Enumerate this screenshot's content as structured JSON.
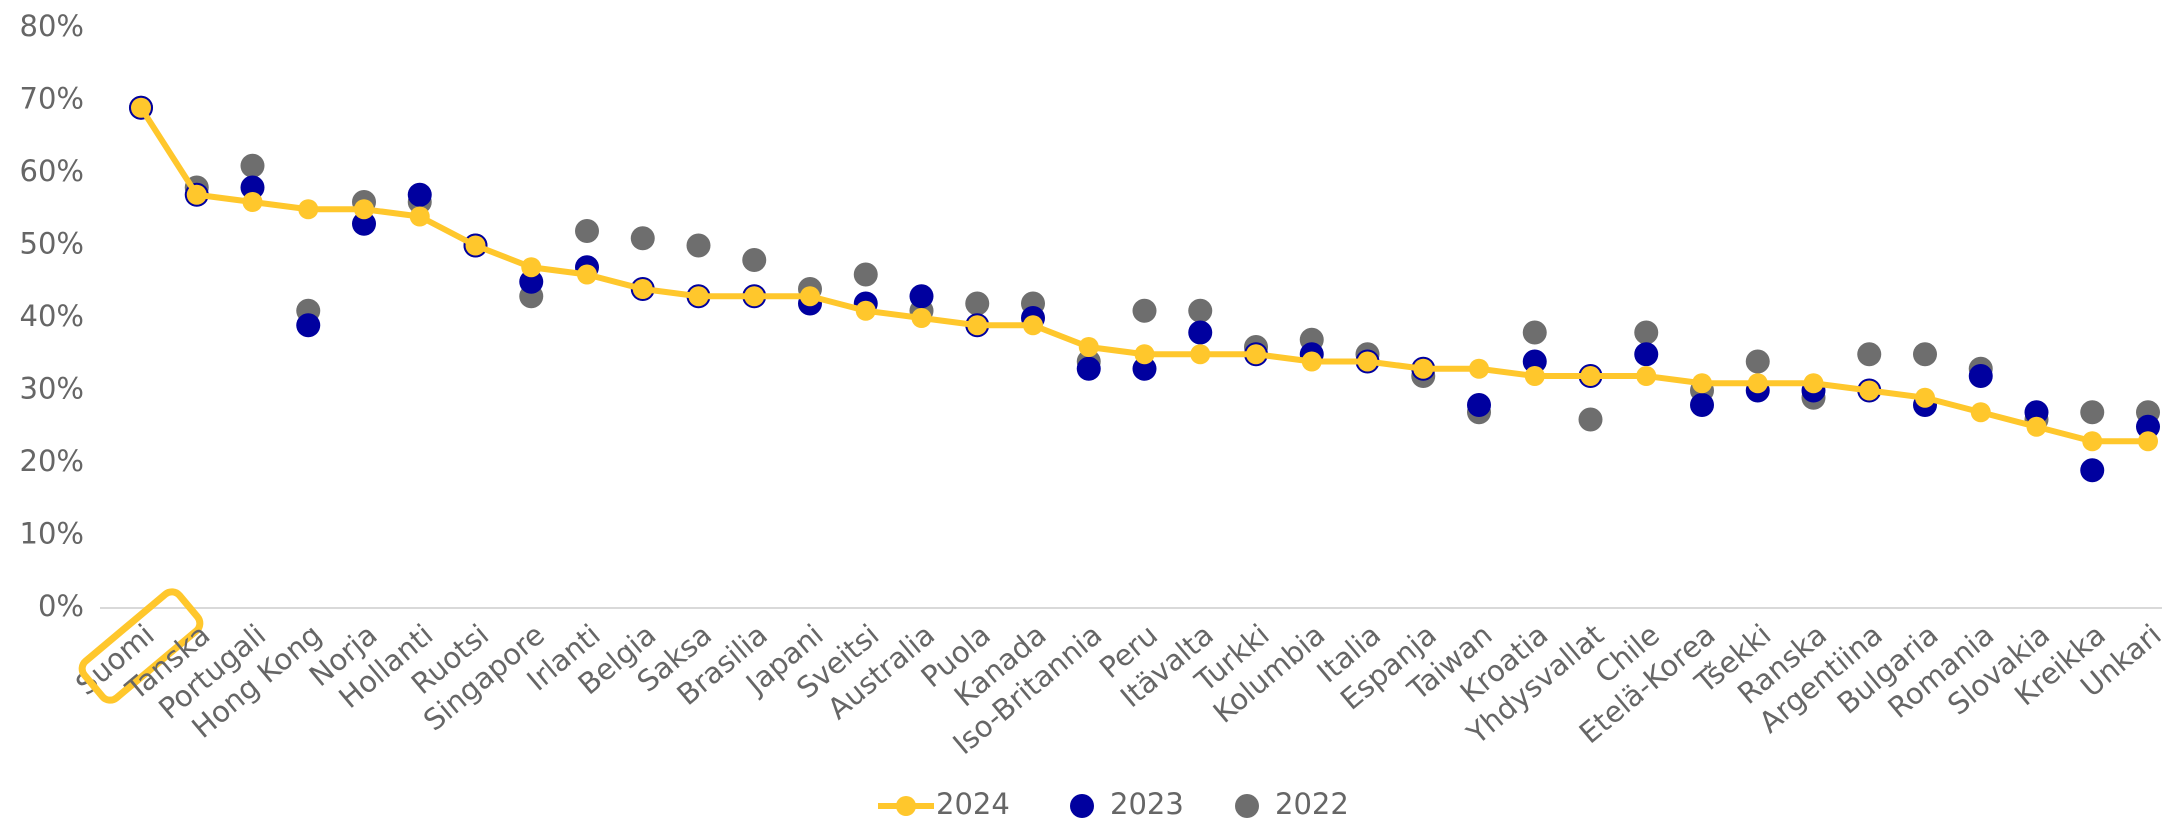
{
  "chart_data": {
    "type": "line",
    "categories": [
      "Suomi",
      "Tanska",
      "Portugali",
      "Hong Kong",
      "Norja",
      "Hollanti",
      "Ruotsi",
      "Singapore",
      "Irlanti",
      "Belgia",
      "Saksa",
      "Brasilia",
      "Japani",
      "Sveitsi",
      "Australia",
      "Puola",
      "Kanada",
      "Iso-Britannia",
      "Peru",
      "Itävalta",
      "Turkki",
      "Kolumbia",
      "Italia",
      "Espanja",
      "Taiwan",
      "Kroatia",
      "Yhdysvallat",
      "Chile",
      "Etelä-Korea",
      "Tšekki",
      "Ranska",
      "Argentiina",
      "Bulgaria",
      "Romania",
      "Slovakia",
      "Kreikka",
      "Unkari"
    ],
    "series": [
      {
        "name": "2024",
        "color": "#FFC72C",
        "style": "line",
        "values": [
          69,
          57,
          56,
          55,
          55,
          54,
          50,
          47,
          46,
          44,
          43,
          43,
          43,
          41,
          40,
          39,
          39,
          36,
          35,
          35,
          35,
          34,
          34,
          33,
          33,
          32,
          32,
          32,
          31,
          31,
          31,
          30,
          29,
          27,
          25,
          23,
          23
        ]
      },
      {
        "name": "2023",
        "color": "#00009F",
        "style": "marker",
        "values": [
          69,
          57,
          58,
          39,
          53,
          57,
          50,
          45,
          47,
          44,
          43,
          43,
          42,
          42,
          43,
          39,
          40,
          33,
          33,
          38,
          35,
          35,
          34,
          33,
          28,
          34,
          32,
          35,
          28,
          30,
          30,
          30,
          28,
          32,
          27,
          19,
          25
        ]
      },
      {
        "name": "2022",
        "color": "#6E6E6E",
        "style": "marker",
        "values": [
          69,
          58,
          61,
          41,
          56,
          56,
          50,
          43,
          52,
          51,
          50,
          48,
          44,
          46,
          41,
          42,
          42,
          34,
          41,
          41,
          36,
          37,
          35,
          32,
          27,
          38,
          26,
          38,
          30,
          34,
          29,
          35,
          35,
          33,
          26,
          27,
          27
        ]
      }
    ],
    "ylim": [
      0,
      80
    ],
    "yticks": [
      {
        "value": 0,
        "label": "0%"
      },
      {
        "value": 10,
        "label": "10%"
      },
      {
        "value": 20,
        "label": "20%"
      },
      {
        "value": 30,
        "label": "30%"
      },
      {
        "value": 40,
        "label": "40%"
      },
      {
        "value": 50,
        "label": "50%"
      },
      {
        "value": 60,
        "label": "60%"
      },
      {
        "value": 70,
        "label": "70%"
      },
      {
        "value": 80,
        "label": "80%"
      }
    ],
    "highlight": "Suomi"
  }
}
